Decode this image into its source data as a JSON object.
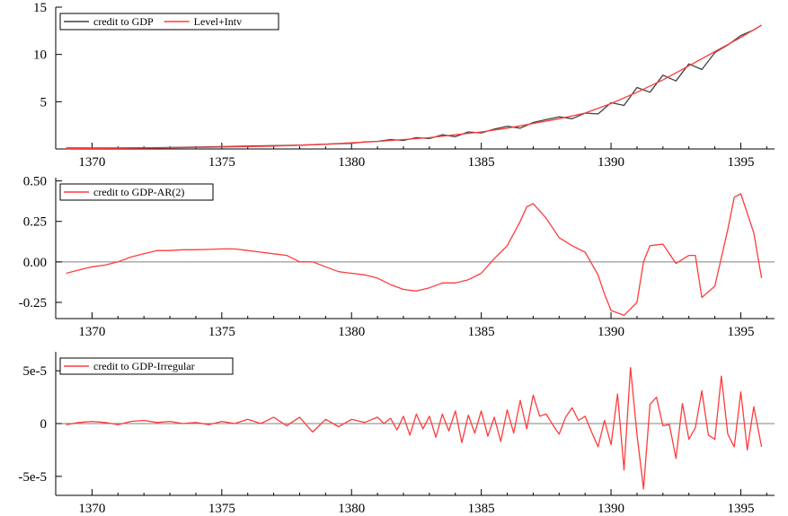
{
  "colors": {
    "background": "#ffffff",
    "actual": "#404040",
    "model": "#ff3b3b",
    "axis": "#000000",
    "zero_line": "#808080"
  },
  "chart_data": [
    {
      "type": "line",
      "x_ticks": [
        "1370",
        "1375",
        "1380",
        "1385",
        "1390",
        "1395"
      ],
      "y_ticks": [
        "15",
        "10",
        "5"
      ],
      "xlim": [
        1368.6,
        1396.3
      ],
      "ylim": [
        0,
        15
      ],
      "legend": [
        "credit to GDP",
        "Level+Intv"
      ],
      "legend_position": "top-left",
      "series": [
        {
          "name": "credit to GDP",
          "color": "#404040",
          "x": [
            1369,
            1370,
            1371,
            1372,
            1373,
            1374,
            1375,
            1376,
            1377,
            1378,
            1379,
            1380,
            1380.5,
            1381,
            1381.5,
            1382,
            1382.5,
            1383,
            1383.5,
            1384,
            1384.5,
            1385,
            1385.5,
            1386,
            1386.5,
            1387,
            1387.5,
            1388,
            1388.5,
            1389,
            1389.5,
            1390,
            1390.5,
            1391,
            1391.5,
            1392,
            1392.5,
            1393,
            1393.5,
            1394,
            1394.5,
            1395,
            1395.5,
            1395.8
          ],
          "y": [
            0.1,
            0.1,
            0.1,
            0.12,
            0.15,
            0.2,
            0.25,
            0.3,
            0.35,
            0.4,
            0.5,
            0.6,
            0.75,
            0.8,
            1.0,
            0.9,
            1.2,
            1.1,
            1.5,
            1.3,
            1.8,
            1.7,
            2.1,
            2.4,
            2.2,
            2.8,
            3.1,
            3.4,
            3.2,
            3.8,
            3.7,
            4.9,
            4.6,
            6.5,
            6.0,
            7.8,
            7.2,
            9.0,
            8.4,
            10.2,
            11.0,
            12.0,
            12.6,
            13.1
          ]
        },
        {
          "name": "Level+Intv",
          "color": "#ff3b3b",
          "x": [
            1369,
            1371,
            1373,
            1375,
            1377,
            1379,
            1381,
            1383,
            1385,
            1386,
            1387,
            1388,
            1389,
            1390,
            1391,
            1392,
            1393,
            1394,
            1395,
            1395.8
          ],
          "y": [
            0.05,
            0.08,
            0.12,
            0.2,
            0.3,
            0.5,
            0.8,
            1.2,
            1.8,
            2.2,
            2.7,
            3.2,
            3.8,
            4.8,
            6.0,
            7.3,
            8.8,
            10.3,
            11.8,
            13.1
          ]
        }
      ]
    },
    {
      "type": "line",
      "x_ticks": [
        "1370",
        "1375",
        "1380",
        "1385",
        "1390",
        "1395"
      ],
      "y_ticks": [
        "0.50",
        "0.25",
        "0.00",
        "-0.25"
      ],
      "xlim": [
        1368.6,
        1396.3
      ],
      "ylim": [
        -0.35,
        0.52
      ],
      "legend": [
        "credit to GDP-AR(2)"
      ],
      "legend_position": "top-left",
      "series": [
        {
          "name": "credit to GDP-AR(2)",
          "color": "#ff3b3b",
          "x": [
            1369,
            1369.5,
            1370,
            1370.5,
            1371,
            1371.5,
            1372,
            1372.5,
            1373,
            1373.5,
            1374,
            1374.5,
            1375,
            1375.5,
            1376,
            1376.5,
            1377,
            1377.5,
            1378,
            1378.5,
            1379,
            1379.5,
            1380,
            1380.5,
            1381,
            1381.5,
            1382,
            1382.5,
            1383,
            1383.5,
            1384,
            1384.5,
            1385,
            1385.5,
            1386,
            1386.5,
            1386.75,
            1387,
            1387.5,
            1388,
            1388.5,
            1389,
            1389.5,
            1389.75,
            1390,
            1390.5,
            1391,
            1391.25,
            1391.5,
            1392,
            1392.5,
            1393,
            1393.25,
            1393.5,
            1394,
            1394.5,
            1394.75,
            1395,
            1395.5,
            1395.8
          ],
          "y": [
            -0.07,
            -0.05,
            -0.03,
            -0.02,
            0.0,
            0.03,
            0.05,
            0.07,
            0.07,
            0.075,
            0.075,
            0.077,
            0.08,
            0.08,
            0.07,
            0.06,
            0.05,
            0.04,
            0.0,
            0.0,
            -0.03,
            -0.06,
            -0.07,
            -0.08,
            -0.1,
            -0.14,
            -0.17,
            -0.18,
            -0.16,
            -0.13,
            -0.13,
            -0.11,
            -0.07,
            0.02,
            0.1,
            0.25,
            0.34,
            0.36,
            0.27,
            0.15,
            0.1,
            0.06,
            -0.08,
            -0.2,
            -0.3,
            -0.33,
            -0.25,
            0.0,
            0.1,
            0.11,
            -0.01,
            0.04,
            0.04,
            -0.22,
            -0.15,
            0.2,
            0.4,
            0.42,
            0.18,
            -0.1
          ]
        }
      ]
    },
    {
      "type": "line",
      "x_ticks": [
        "1370",
        "1375",
        "1380",
        "1385",
        "1390",
        "1395"
      ],
      "y_ticks": [
        "5e-5",
        "0",
        "-5e-5"
      ],
      "xlim": [
        1368.6,
        1396.3
      ],
      "ylim": [
        -6.8e-05,
        6.8e-05
      ],
      "legend": [
        "credit to GDP-Irregular"
      ],
      "legend_position": "top-left",
      "series": [
        {
          "name": "credit to GDP-Irregular",
          "color": "#ff3b3b",
          "x": [
            1369,
            1369.5,
            1370,
            1370.5,
            1371,
            1371.5,
            1372,
            1372.5,
            1373,
            1373.5,
            1374,
            1374.5,
            1375,
            1375.5,
            1376,
            1376.5,
            1377,
            1377.5,
            1378,
            1378.5,
            1379,
            1379.5,
            1380,
            1380.5,
            1381,
            1381.25,
            1381.5,
            1381.75,
            1382,
            1382.25,
            1382.5,
            1382.75,
            1383,
            1383.25,
            1383.5,
            1383.75,
            1384,
            1384.25,
            1384.5,
            1384.75,
            1385,
            1385.25,
            1385.5,
            1385.75,
            1386,
            1386.25,
            1386.5,
            1386.75,
            1387,
            1387.25,
            1387.5,
            1387.75,
            1388,
            1388.25,
            1388.5,
            1388.75,
            1389,
            1389.25,
            1389.5,
            1389.75,
            1390,
            1390.25,
            1390.5,
            1390.75,
            1391,
            1391.25,
            1391.5,
            1391.75,
            1392,
            1392.25,
            1392.5,
            1392.75,
            1393,
            1393.25,
            1393.5,
            1393.75,
            1394,
            1394.25,
            1394.5,
            1394.75,
            1395,
            1395.25,
            1395.5,
            1395.8
          ],
          "y": [
            -1e-06,
            1e-06,
            2e-06,
            1e-06,
            -1e-06,
            2e-06,
            3e-06,
            1e-06,
            2e-06,
            0.0,
            1e-06,
            -1e-06,
            2e-06,
            0.0,
            4e-06,
            0.0,
            6e-06,
            -2e-06,
            6e-06,
            -8e-06,
            4e-06,
            -3e-06,
            4e-06,
            1e-06,
            6e-06,
            0.0,
            5e-06,
            -6e-06,
            7e-06,
            -1.1e-05,
            9e-06,
            -5e-06,
            7e-06,
            -1.3e-05,
            9e-06,
            -7e-06,
            1.2e-05,
            -1.8e-05,
            8e-06,
            -9e-06,
            1.2e-05,
            -1.2e-05,
            6e-06,
            -1.7e-05,
            1.3e-05,
            -9e-06,
            2.2e-05,
            -5e-06,
            2.7e-05,
            7e-06,
            9e-06,
            -1e-06,
            -1e-05,
            6e-06,
            1.5e-05,
            3e-06,
            7e-06,
            -8e-06,
            -2.2e-05,
            3e-06,
            -2e-05,
            2.8e-05,
            -4.4e-05,
            5.3e-05,
            -1e-05,
            -6.2e-05,
            1.8e-05,
            2.5e-05,
            -2e-06,
            -1e-06,
            -3.3e-05,
            1.9e-05,
            -1.5e-05,
            -4e-06,
            3.1e-05,
            -1.1e-05,
            -1.5e-05,
            4.5e-05,
            -1e-05,
            -2.2e-05,
            3e-05,
            -2.5e-05,
            1.6e-05,
            -2.2e-05
          ]
        }
      ]
    }
  ]
}
